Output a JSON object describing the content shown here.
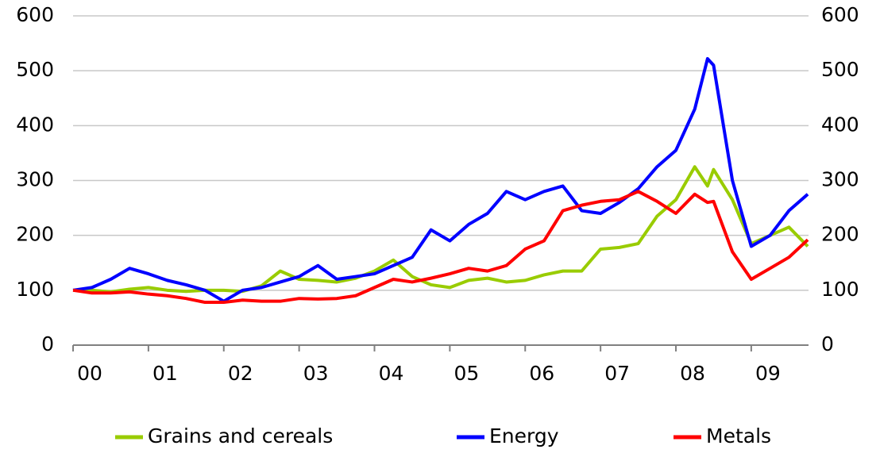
{
  "chart_data": {
    "type": "line",
    "x": [
      2000,
      2000.25,
      2000.5,
      2000.75,
      2001,
      2001.25,
      2001.5,
      2001.75,
      2002,
      2002.25,
      2002.5,
      2002.75,
      2003,
      2003.25,
      2003.5,
      2003.75,
      2004,
      2004.25,
      2004.5,
      2004.75,
      2005,
      2005.25,
      2005.5,
      2005.75,
      2006,
      2006.25,
      2006.5,
      2006.75,
      2007,
      2007.25,
      2007.5,
      2007.75,
      2008,
      2008.25,
      2008.42,
      2008.5,
      2008.75,
      2009,
      2009.25,
      2009.5,
      2009.75
    ],
    "series": [
      {
        "name": "Grains and cereals",
        "color": "#99cc00",
        "values": [
          100,
          100,
          97,
          102,
          105,
          100,
          98,
          100,
          100,
          98,
          108,
          135,
          120,
          118,
          115,
          122,
          135,
          155,
          125,
          110,
          105,
          118,
          122,
          115,
          118,
          128,
          135,
          135,
          175,
          178,
          185,
          235,
          265,
          325,
          290,
          320,
          265,
          185,
          200,
          215,
          180
        ]
      },
      {
        "name": "Energy",
        "color": "#0000ff",
        "values": [
          100,
          105,
          120,
          140,
          130,
          118,
          110,
          100,
          80,
          100,
          105,
          115,
          125,
          145,
          120,
          125,
          130,
          145,
          160,
          210,
          190,
          220,
          240,
          280,
          265,
          280,
          290,
          245,
          240,
          260,
          285,
          325,
          355,
          430,
          522,
          510,
          300,
          180,
          200,
          245,
          275
        ]
      },
      {
        "name": "Metals",
        "color": "#ff0000",
        "values": [
          100,
          95,
          95,
          97,
          93,
          90,
          85,
          78,
          78,
          82,
          80,
          80,
          85,
          84,
          85,
          90,
          105,
          120,
          115,
          122,
          130,
          140,
          135,
          145,
          175,
          190,
          245,
          255,
          262,
          265,
          280,
          262,
          240,
          275,
          260,
          262,
          170,
          120,
          140,
          160,
          192
        ]
      }
    ],
    "xlim": [
      2000,
      2009.76
    ],
    "xticks": [
      {
        "value": 2000,
        "label": "00"
      },
      {
        "value": 2001,
        "label": "01"
      },
      {
        "value": 2002,
        "label": "02"
      },
      {
        "value": 2003,
        "label": "03"
      },
      {
        "value": 2004,
        "label": "04"
      },
      {
        "value": 2005,
        "label": "05"
      },
      {
        "value": 2006,
        "label": "06"
      },
      {
        "value": 2007,
        "label": "07"
      },
      {
        "value": 2008,
        "label": "08"
      },
      {
        "value": 2009,
        "label": "09"
      }
    ],
    "ylim": [
      0,
      600
    ],
    "yticks": [
      0,
      100,
      200,
      300,
      400,
      500,
      600
    ],
    "y2lim": [
      0,
      600
    ],
    "y2ticks": [
      0,
      100,
      200,
      300,
      400,
      500,
      600
    ],
    "grid": true,
    "legend": "bottom"
  }
}
